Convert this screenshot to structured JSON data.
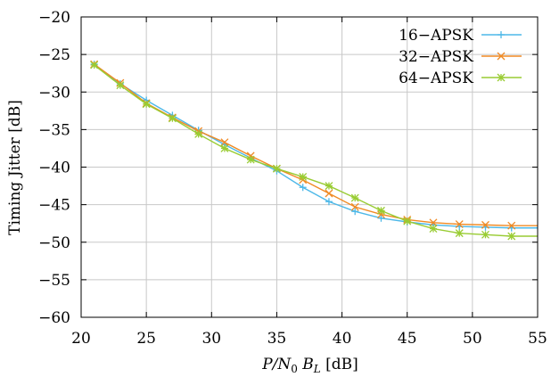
{
  "chart_data": {
    "type": "line",
    "xlabel": "P/N0 BL [dB]",
    "xlabel_parts": {
      "p": "P/N",
      "sub0": "0",
      "b": "B",
      "subL": "L",
      "unit": "[dB]"
    },
    "ylabel": "Timing Jitter [dB]",
    "xlim": [
      20,
      55
    ],
    "ylim": [
      -60,
      -20
    ],
    "xticks": [
      20,
      25,
      30,
      35,
      40,
      45,
      50,
      55
    ],
    "yticks": [
      -20,
      -25,
      -30,
      -35,
      -40,
      -45,
      -50,
      -55,
      -60
    ],
    "xtick_labels": [
      "20",
      "25",
      "30",
      "35",
      "40",
      "45",
      "50",
      "55"
    ],
    "ytick_labels": [
      "−20",
      "−25",
      "−30",
      "−35",
      "−40",
      "−45",
      "−50",
      "−55",
      "−60"
    ],
    "grid": true,
    "legend_position": "top-right",
    "x": [
      21,
      23,
      25,
      27,
      29,
      31,
      33,
      35,
      37,
      39,
      41,
      43,
      45,
      47,
      49,
      51,
      53
    ],
    "series": [
      {
        "name": "16−APSK",
        "color": "#4db8e8",
        "marker": "plus",
        "values": [
          -26.3,
          -28.9,
          -31.1,
          -33.1,
          -35.1,
          -37.0,
          -38.8,
          -40.5,
          -42.7,
          -44.6,
          -45.9,
          -46.8,
          -47.3,
          -47.7,
          -47.9,
          -48.0,
          -48.1
        ]
      },
      {
        "name": "32−APSK",
        "color": "#f08a24",
        "marker": "x",
        "values": [
          -26.3,
          -28.8,
          -31.5,
          -33.4,
          -35.2,
          -36.7,
          -38.5,
          -40.2,
          -41.7,
          -43.5,
          -45.3,
          -46.3,
          -47.0,
          -47.4,
          -47.6,
          -47.7,
          -47.8
        ]
      },
      {
        "name": "64−APSK",
        "color": "#99cc33",
        "marker": "star",
        "values": [
          -26.4,
          -29.1,
          -31.6,
          -33.5,
          -35.6,
          -37.5,
          -39.0,
          -40.2,
          -41.3,
          -42.5,
          -44.1,
          -45.8,
          -47.2,
          -48.2,
          -48.8,
          -49.0,
          -49.2
        ]
      }
    ]
  }
}
